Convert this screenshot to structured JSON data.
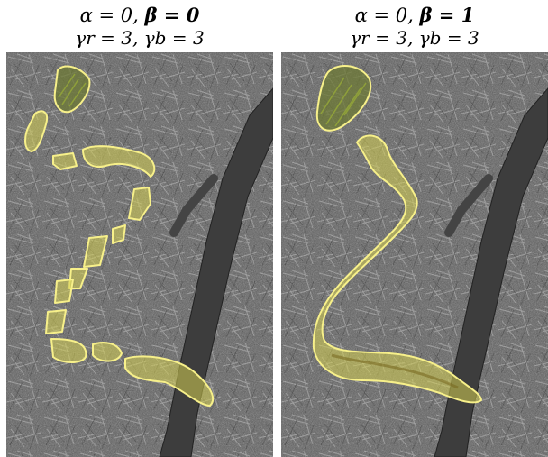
{
  "panels": [
    {
      "id": "left",
      "title_line1": {
        "alpha": "α = 0,",
        "beta": "β = 0"
      },
      "title_line2": "γr = 3, γb = 3",
      "segmentation": "fragmented"
    },
    {
      "id": "right",
      "title_line1": {
        "alpha": "α = 0,",
        "beta": "β = 1"
      },
      "title_line2": "γr = 3, γb = 3",
      "segmentation": "continuous"
    }
  ],
  "colors": {
    "contour": "#f7f08a",
    "fill": "#d6cf52",
    "ground": "#5b5b5b",
    "branch": "#3e3e3e",
    "needles": "#9a9a9a",
    "snake": "#8a7b2a",
    "plant": "#4f6a2a"
  }
}
